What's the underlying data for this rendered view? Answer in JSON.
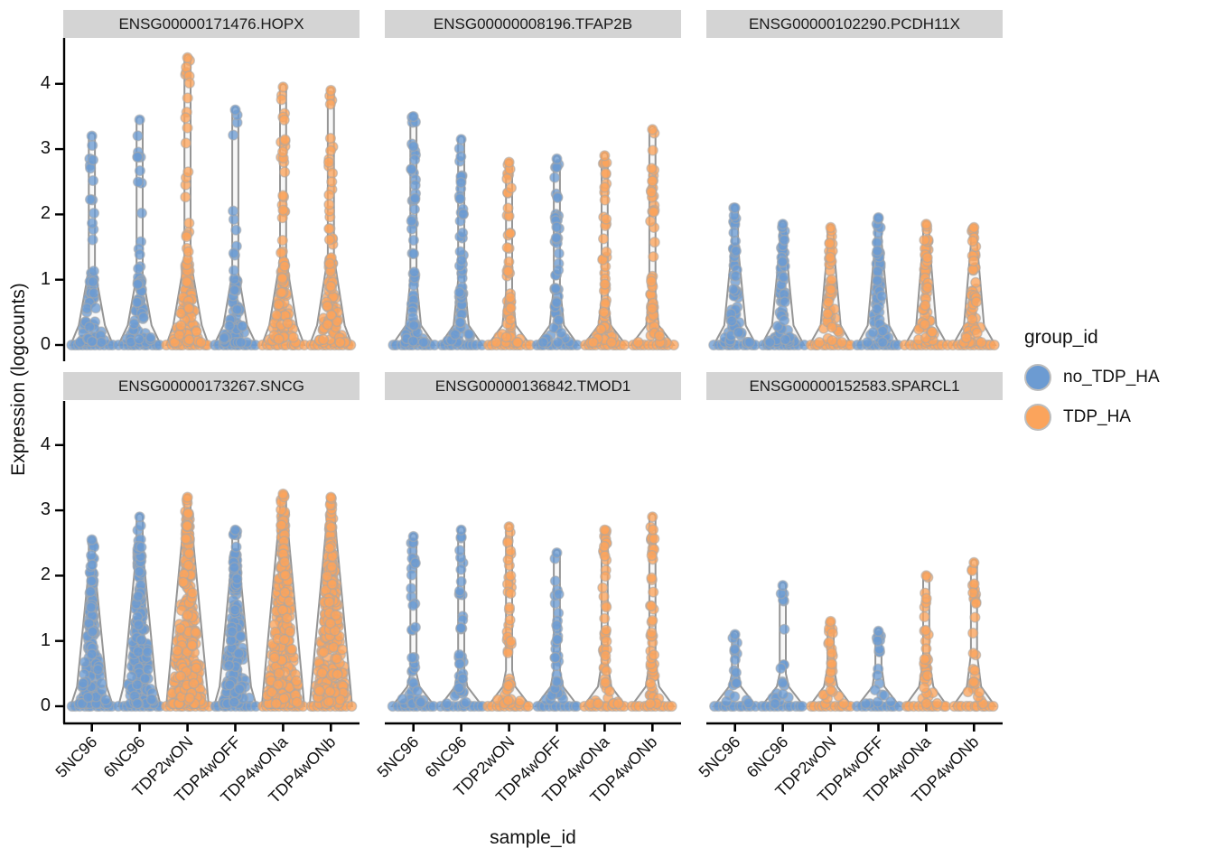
{
  "figure": {
    "xlab": "sample_id",
    "ylab": "Expression (logcounts)"
  },
  "legend": {
    "title": "group_id",
    "items": [
      {
        "label": "no_TDP_HA",
        "color": "#6C9BD2"
      },
      {
        "label": "TDP_HA",
        "color": "#FBA45C"
      }
    ]
  },
  "chart_data": {
    "type": "violin-jitter",
    "facet_variable": "gene_id",
    "xlabel": "sample_id",
    "ylabel": "Expression (logcounts)",
    "categories": [
      "5NC96",
      "6NC96",
      "TDP2wON",
      "TDP4wOFF",
      "TDP4wONa",
      "TDP4wONb"
    ],
    "category_groups": {
      "5NC96": "no_TDP_HA",
      "6NC96": "no_TDP_HA",
      "TDP2wON": "TDP_HA",
      "TDP4wOFF": "no_TDP_HA",
      "TDP4wONa": "TDP_HA",
      "TDP4wONb": "TDP_HA"
    },
    "group_colors": {
      "no_TDP_HA": "#6C9BD2",
      "TDP_HA": "#FBA45C"
    },
    "y_ticks": [
      0,
      1,
      2,
      3,
      4
    ],
    "ylim": [
      0,
      4.6
    ],
    "legend_position": "right",
    "grid": false,
    "violin_stroke": "#8F8F8F",
    "violin_fill": "#F5F5F5",
    "point_stroke": "#A8A8A8",
    "facets": [
      {
        "title": "ENSG00000171476.HOPX",
        "row": 0,
        "col": 0,
        "samples": [
          {
            "id": "5NC96",
            "max": 3.2,
            "body_top": 1.15,
            "width": 0.55,
            "n_body": 60,
            "n_stem": 12
          },
          {
            "id": "6NC96",
            "max": 3.45,
            "body_top": 1.05,
            "width": 0.5,
            "n_body": 55,
            "n_stem": 14
          },
          {
            "id": "TDP2wON",
            "max": 4.4,
            "body_top": 1.3,
            "width": 0.6,
            "n_body": 85,
            "n_stem": 22
          },
          {
            "id": "TDP4wOFF",
            "max": 3.6,
            "body_top": 1.1,
            "width": 0.5,
            "n_body": 60,
            "n_stem": 10
          },
          {
            "id": "TDP4wONa",
            "max": 3.95,
            "body_top": 1.3,
            "width": 0.58,
            "n_body": 75,
            "n_stem": 24
          },
          {
            "id": "TDP4wONb",
            "max": 3.9,
            "body_top": 1.35,
            "width": 0.58,
            "n_body": 75,
            "n_stem": 22
          }
        ]
      },
      {
        "title": "ENSG00000008196.TFAP2B",
        "row": 0,
        "col": 1,
        "samples": [
          {
            "id": "5NC96",
            "max": 3.5,
            "body_top": 1.0,
            "width": 0.32,
            "n_body": 40,
            "n_stem": 30
          },
          {
            "id": "6NC96",
            "max": 3.15,
            "body_top": 1.0,
            "width": 0.32,
            "n_body": 40,
            "n_stem": 28
          },
          {
            "id": "TDP2wON",
            "max": 2.8,
            "body_top": 0.8,
            "width": 0.28,
            "n_body": 30,
            "n_stem": 22
          },
          {
            "id": "TDP4wOFF",
            "max": 2.85,
            "body_top": 0.9,
            "width": 0.3,
            "n_body": 35,
            "n_stem": 26
          },
          {
            "id": "TDP4wONa",
            "max": 2.9,
            "body_top": 0.7,
            "width": 0.26,
            "n_body": 28,
            "n_stem": 26
          },
          {
            "id": "TDP4wONb",
            "max": 3.3,
            "body_top": 0.8,
            "width": 0.26,
            "n_body": 28,
            "n_stem": 26
          }
        ]
      },
      {
        "title": "ENSG00000102290.PCDH11X",
        "row": 0,
        "col": 2,
        "samples": [
          {
            "id": "5NC96",
            "max": 2.1,
            "body_top": 1.5,
            "width": 0.45,
            "n_body": 55,
            "n_stem": 8
          },
          {
            "id": "6NC96",
            "max": 1.85,
            "body_top": 1.5,
            "width": 0.45,
            "n_body": 55,
            "n_stem": 6
          },
          {
            "id": "TDP2wON",
            "max": 1.8,
            "body_top": 1.5,
            "width": 0.42,
            "n_body": 48,
            "n_stem": 5
          },
          {
            "id": "TDP4wOFF",
            "max": 1.95,
            "body_top": 1.6,
            "width": 0.45,
            "n_body": 58,
            "n_stem": 5
          },
          {
            "id": "TDP4wONa",
            "max": 1.85,
            "body_top": 1.6,
            "width": 0.42,
            "n_body": 52,
            "n_stem": 4
          },
          {
            "id": "TDP4wONb",
            "max": 1.8,
            "body_top": 1.55,
            "width": 0.42,
            "n_body": 48,
            "n_stem": 5
          }
        ]
      },
      {
        "title": "ENSG00000173267.SNCG",
        "row": 1,
        "col": 0,
        "samples": [
          {
            "id": "5NC96",
            "max": 2.55,
            "body_top": 2.1,
            "width": 0.62,
            "n_body": 150,
            "n_stem": 8
          },
          {
            "id": "6NC96",
            "max": 2.9,
            "body_top": 2.4,
            "width": 0.68,
            "n_body": 170,
            "n_stem": 8
          },
          {
            "id": "TDP2wON",
            "max": 3.2,
            "body_top": 2.95,
            "width": 0.82,
            "n_body": 260,
            "n_stem": 5
          },
          {
            "id": "TDP4wOFF",
            "max": 2.7,
            "body_top": 2.35,
            "width": 0.66,
            "n_body": 170,
            "n_stem": 6
          },
          {
            "id": "TDP4wONa",
            "max": 3.25,
            "body_top": 3.0,
            "width": 0.82,
            "n_body": 260,
            "n_stem": 5
          },
          {
            "id": "TDP4wONb",
            "max": 3.2,
            "body_top": 3.0,
            "width": 0.82,
            "n_body": 260,
            "n_stem": 5
          }
        ]
      },
      {
        "title": "ENSG00000136842.TMOD1",
        "row": 1,
        "col": 1,
        "samples": [
          {
            "id": "5NC96",
            "max": 2.6,
            "body_top": 0.5,
            "width": 0.26,
            "n_body": 16,
            "n_stem": 22
          },
          {
            "id": "6NC96",
            "max": 2.7,
            "body_top": 0.55,
            "width": 0.26,
            "n_body": 18,
            "n_stem": 24
          },
          {
            "id": "TDP2wON",
            "max": 2.75,
            "body_top": 0.55,
            "width": 0.26,
            "n_body": 16,
            "n_stem": 26
          },
          {
            "id": "TDP4wOFF",
            "max": 2.35,
            "body_top": 0.55,
            "width": 0.26,
            "n_body": 16,
            "n_stem": 20
          },
          {
            "id": "TDP4wONa",
            "max": 2.7,
            "body_top": 0.65,
            "width": 0.28,
            "n_body": 18,
            "n_stem": 30
          },
          {
            "id": "TDP4wONb",
            "max": 2.9,
            "body_top": 0.65,
            "width": 0.28,
            "n_body": 18,
            "n_stem": 28
          }
        ]
      },
      {
        "title": "ENSG00000152583.SPARCL1",
        "row": 1,
        "col": 2,
        "samples": [
          {
            "id": "5NC96",
            "max": 1.1,
            "body_top": 0.5,
            "width": 0.25,
            "n_body": 10,
            "n_stem": 8
          },
          {
            "id": "6NC96",
            "max": 1.85,
            "body_top": 0.5,
            "width": 0.25,
            "n_body": 10,
            "n_stem": 8
          },
          {
            "id": "TDP2wON",
            "max": 1.3,
            "body_top": 0.6,
            "width": 0.28,
            "n_body": 14,
            "n_stem": 12
          },
          {
            "id": "TDP4wOFF",
            "max": 1.15,
            "body_top": 0.6,
            "width": 0.25,
            "n_body": 10,
            "n_stem": 8
          },
          {
            "id": "TDP4wONa",
            "max": 2.0,
            "body_top": 0.7,
            "width": 0.3,
            "n_body": 16,
            "n_stem": 14
          },
          {
            "id": "TDP4wONb",
            "max": 2.2,
            "body_top": 0.8,
            "width": 0.3,
            "n_body": 16,
            "n_stem": 14
          }
        ]
      }
    ]
  }
}
